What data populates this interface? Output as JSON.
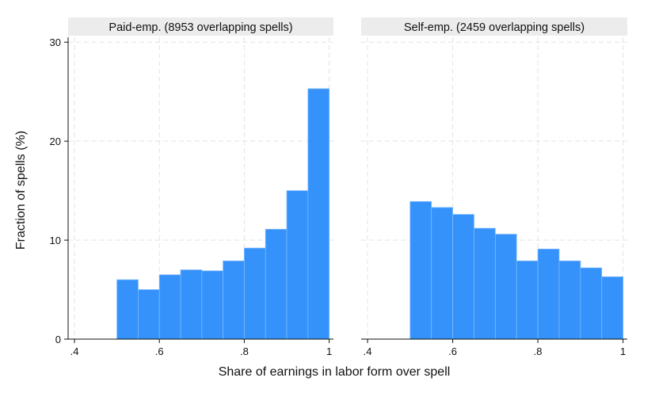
{
  "chart_data": {
    "type": "bar",
    "subtype": "histogram",
    "ylabel": "Fraction of spells (%)",
    "xlabel": "Share of earnings in labor form over spell",
    "xlim": [
      0.385,
      1.01
    ],
    "ylim": [
      0,
      30.5
    ],
    "x_ticks": [
      0.4,
      0.6,
      0.8,
      1.0
    ],
    "x_tick_labels": [
      ".4",
      ".6",
      ".8",
      "1"
    ],
    "y_ticks": [
      0,
      10,
      20,
      30
    ],
    "y_tick_labels": [
      "0",
      "10",
      "20",
      "30"
    ],
    "grid": true,
    "bar_color": "#3592fb",
    "panel_header_color": "#ececec",
    "bin_width": 0.05,
    "bins": [
      [
        0.5,
        0.55
      ],
      [
        0.55,
        0.6
      ],
      [
        0.6,
        0.65
      ],
      [
        0.65,
        0.7
      ],
      [
        0.7,
        0.75
      ],
      [
        0.75,
        0.8
      ],
      [
        0.8,
        0.85
      ],
      [
        0.85,
        0.9
      ],
      [
        0.9,
        0.95
      ],
      [
        0.95,
        1.0
      ]
    ],
    "panels": [
      {
        "title": "Paid-emp. (8953 overlapping spells)",
        "values": [
          6.0,
          5.0,
          6.5,
          7.0,
          6.9,
          7.9,
          9.2,
          11.1,
          15.0,
          25.3
        ]
      },
      {
        "title": "Self-emp. (2459 overlapping spells)",
        "values": [
          13.9,
          13.3,
          12.6,
          11.2,
          10.6,
          7.9,
          9.1,
          7.9,
          7.2,
          6.3
        ]
      }
    ]
  }
}
